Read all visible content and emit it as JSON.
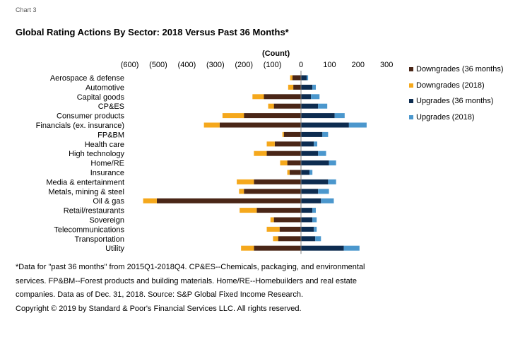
{
  "header": {
    "chart_label": "Chart 3",
    "title": "Global Rating Actions By Sector: 2018 Versus Past 36 Months*"
  },
  "notes": {
    "line1": "*Data for \"past 36 months\" from 2015Q1-2018Q4. CP&ES--Chemicals, packaging, and environmental services. FP&BM--Forest products and building materials. Home/RE--Homebuilders and real estate companies. Data as of Dec. 31, 2018. Source: S&P Global Fixed Income Research.",
    "line2": "Copyright © 2019 by Standard & Poor's Financial Services LLC. All rights reserved."
  },
  "colors": {
    "downgrades_36": "#4a2617",
    "downgrades_2018": "#f5a81c",
    "upgrades_36": "#0d2c50",
    "upgrades_2018": "#4b97cd"
  },
  "chart_data": {
    "type": "bar",
    "orientation": "horizontal",
    "stacked": true,
    "xlabel": "(Count)",
    "xlim": [
      -600,
      300
    ],
    "xticks": [
      -600,
      -500,
      -400,
      -300,
      -200,
      -100,
      0,
      100,
      200,
      300
    ],
    "xtick_labels": [
      "(600)",
      "(500)",
      "(400)",
      "(300)",
      "(200)",
      "(100)",
      "0",
      "100",
      "200",
      "300"
    ],
    "grid": false,
    "legend_position": "right",
    "categories": [
      "Aerospace & defense",
      "Automotive",
      "Capital goods",
      "CP&ES",
      "Consumer products",
      "Financials (ex. insurance)",
      "FP&BM",
      "Health care",
      "High technology",
      "Home/RE",
      "Insurance",
      "Media & entertainment",
      "Metals, mining & steel",
      "Oil & gas",
      "Retail/restaurants",
      "Sovereign",
      "Telecommunications",
      "Transportation",
      "Utility"
    ],
    "series": [
      {
        "name": "Downgrades (36 months)",
        "values": [
          -30,
          -27,
          -130,
          -95,
          -200,
          -285,
          -60,
          -92,
          -120,
          -48,
          -40,
          -165,
          -200,
          -505,
          -155,
          -95,
          -75,
          -80,
          -165
        ],
        "color": "#4a2617"
      },
      {
        "name": "Downgrades (2018)",
        "values": [
          -8,
          -18,
          -40,
          -20,
          -75,
          -55,
          -5,
          -28,
          -45,
          -25,
          -8,
          -60,
          -17,
          -48,
          -60,
          -12,
          -45,
          -18,
          -45
        ],
        "color": "#f5a81c"
      },
      {
        "name": "Upgrades (36 months)",
        "values": [
          20,
          40,
          35,
          60,
          118,
          168,
          75,
          45,
          60,
          98,
          30,
          95,
          60,
          70,
          40,
          40,
          45,
          50,
          150
        ],
        "color": "#0d2c50"
      },
      {
        "name": "Upgrades (2018)",
        "values": [
          5,
          12,
          30,
          32,
          35,
          62,
          20,
          12,
          28,
          25,
          10,
          28,
          38,
          45,
          12,
          15,
          10,
          20,
          55
        ],
        "color": "#4b97cd"
      }
    ]
  }
}
